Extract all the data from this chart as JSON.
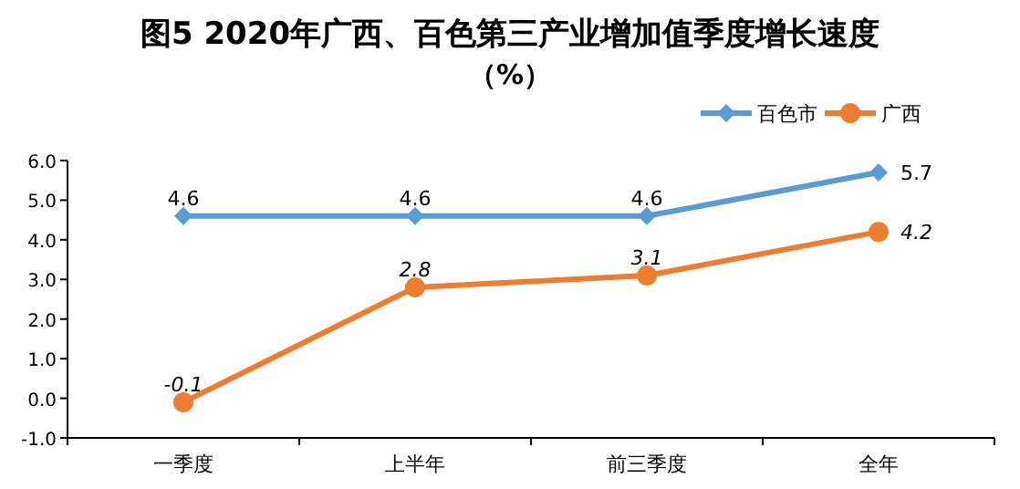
{
  "chart_data": {
    "type": "line",
    "title": "图5 2020年广西、百色第三产业增加值季度增长速度",
    "subtitle": "（%）",
    "categories": [
      "一季度",
      "上半年",
      "前三季度",
      "全年"
    ],
    "series": [
      {
        "name": "百色市",
        "color": "#5b9bd5",
        "values": [
          4.6,
          4.6,
          4.6,
          5.7
        ],
        "marker": "diamond"
      },
      {
        "name": "广西",
        "color": "#ed7d31",
        "values": [
          -0.1,
          2.8,
          3.1,
          4.2
        ],
        "marker": "circle"
      }
    ],
    "ylim": [
      -1,
      6
    ],
    "yticks": [
      {
        "value": -1,
        "label": "-1.0"
      },
      {
        "value": 0,
        "label": "0.0"
      },
      {
        "value": 1,
        "label": "1.0"
      },
      {
        "value": 2,
        "label": "2.0"
      },
      {
        "value": 3,
        "label": "3.0"
      },
      {
        "value": 4,
        "label": "4.0"
      },
      {
        "value": 5,
        "label": "5.0"
      },
      {
        "value": 6,
        "label": "6.0"
      }
    ],
    "data_labels": true,
    "legend": "top right",
    "grid": false,
    "line_style": "solid"
  }
}
